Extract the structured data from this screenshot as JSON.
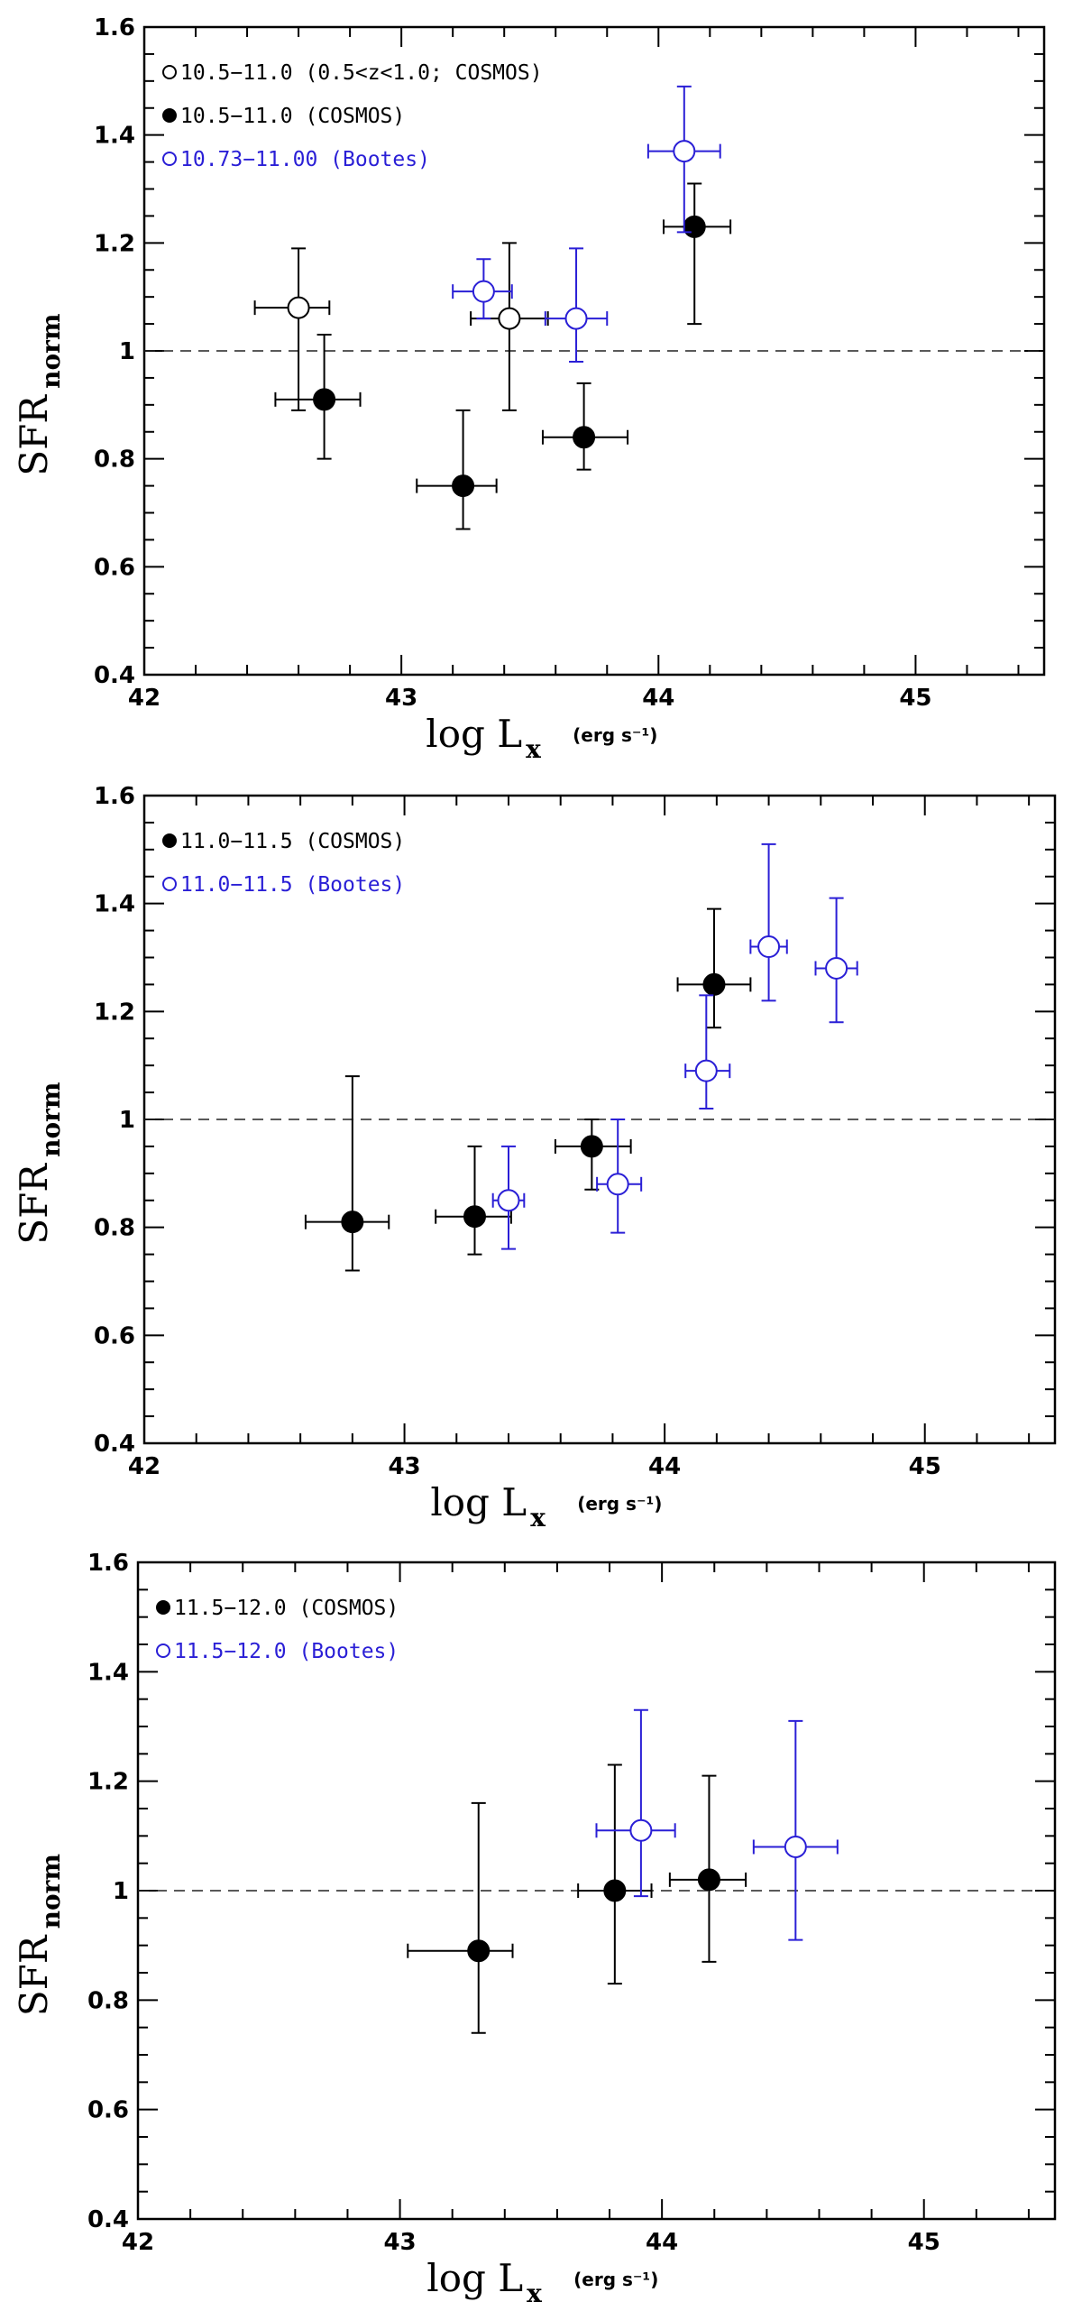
{
  "chart_data": [
    {
      "type": "scatter",
      "xlabel_main": "log L",
      "xlabel_sub": "x",
      "xlabel_units": "(erg s⁻¹)",
      "ylabel_main": "SFR",
      "ylabel_sub": "norm",
      "xlim": [
        42,
        45.5
      ],
      "ylim": [
        0.4,
        1.6
      ],
      "xticks": [
        42,
        43,
        44,
        45
      ],
      "yticks": [
        0.4,
        0.6,
        0.8,
        1,
        1.2,
        1.4,
        1.6
      ],
      "ytick_labels": [
        "0.4",
        "0.6",
        "0.8",
        "1",
        "1.2",
        "1.4",
        "1.6"
      ],
      "reference_line": 1,
      "series": [
        {
          "name": "10.5−11.0 (0.5<z<1.0; COSMOS)",
          "marker": "open",
          "color": "#000000",
          "points": [
            {
              "x": 42.6,
              "y": 1.08,
              "xerr": [
                0.17,
                0.12
              ],
              "yerr": [
                0.19,
                0.11
              ]
            },
            {
              "x": 43.42,
              "y": 1.06,
              "xerr": [
                0.15,
                0.15
              ],
              "yerr": [
                0.17,
                0.14
              ]
            }
          ]
        },
        {
          "name": "10.5−11.0 (COSMOS)",
          "marker": "filled",
          "color": "#000000",
          "points": [
            {
              "x": 42.7,
              "y": 0.91,
              "xerr": [
                0.19,
                0.14
              ],
              "yerr": [
                0.11,
                0.12
              ]
            },
            {
              "x": 43.24,
              "y": 0.75,
              "xerr": [
                0.18,
                0.13
              ],
              "yerr": [
                0.08,
                0.14
              ]
            },
            {
              "x": 43.71,
              "y": 0.84,
              "xerr": [
                0.16,
                0.17
              ],
              "yerr": [
                0.06,
                0.1
              ]
            },
            {
              "x": 44.14,
              "y": 1.23,
              "xerr": [
                0.12,
                0.14
              ],
              "yerr": [
                0.18,
                0.08
              ]
            }
          ]
        },
        {
          "name": "10.73−11.00 (Bootes)",
          "marker": "open",
          "color": "#2a1fd6",
          "points": [
            {
              "x": 43.32,
              "y": 1.11,
              "xerr": [
                0.12,
                0.11
              ],
              "yerr": [
                0.05,
                0.06
              ]
            },
            {
              "x": 43.68,
              "y": 1.06,
              "xerr": [
                0.12,
                0.12
              ],
              "yerr": [
                0.08,
                0.13
              ]
            },
            {
              "x": 44.1,
              "y": 1.37,
              "xerr": [
                0.14,
                0.14
              ],
              "yerr": [
                0.15,
                0.12
              ]
            }
          ]
        }
      ]
    },
    {
      "type": "scatter",
      "xlabel_main": "log L",
      "xlabel_sub": "x",
      "xlabel_units": "(erg s⁻¹)",
      "ylabel_main": "SFR",
      "ylabel_sub": "norm",
      "xlim": [
        42,
        45.5
      ],
      "ylim": [
        0.4,
        1.6
      ],
      "xticks": [
        42,
        43,
        44,
        45
      ],
      "yticks": [
        0.4,
        0.6,
        0.8,
        1,
        1.2,
        1.4,
        1.6
      ],
      "ytick_labels": [
        "0.4",
        "0.6",
        "0.8",
        "1",
        "1.2",
        "1.4",
        "1.6"
      ],
      "reference_line": 1,
      "series": [
        {
          "name": "11.0−11.5 (COSMOS)",
          "marker": "filled",
          "color": "#000000",
          "points": [
            {
              "x": 42.8,
              "y": 0.81,
              "xerr": [
                0.18,
                0.14
              ],
              "yerr": [
                0.09,
                0.27
              ]
            },
            {
              "x": 43.27,
              "y": 0.82,
              "xerr": [
                0.15,
                0.14
              ],
              "yerr": [
                0.07,
                0.13
              ]
            },
            {
              "x": 43.72,
              "y": 0.95,
              "xerr": [
                0.14,
                0.15
              ],
              "yerr": [
                0.08,
                0.05
              ]
            },
            {
              "x": 44.19,
              "y": 1.25,
              "xerr": [
                0.14,
                0.14
              ],
              "yerr": [
                0.08,
                0.14
              ]
            }
          ]
        },
        {
          "name": "11.0−11.5 (Bootes)",
          "marker": "open",
          "color": "#2a1fd6",
          "points": [
            {
              "x": 43.4,
              "y": 0.85,
              "xerr": [
                0.06,
                0.06
              ],
              "yerr": [
                0.09,
                0.1
              ]
            },
            {
              "x": 43.82,
              "y": 0.88,
              "xerr": [
                0.08,
                0.09
              ],
              "yerr": [
                0.09,
                0.12
              ]
            },
            {
              "x": 44.16,
              "y": 1.09,
              "xerr": [
                0.08,
                0.09
              ],
              "yerr": [
                0.07,
                0.14
              ]
            },
            {
              "x": 44.4,
              "y": 1.32,
              "xerr": [
                0.07,
                0.07
              ],
              "yerr": [
                0.1,
                0.19
              ]
            },
            {
              "x": 44.66,
              "y": 1.28,
              "xerr": [
                0.08,
                0.08
              ],
              "yerr": [
                0.1,
                0.13
              ]
            }
          ]
        }
      ]
    },
    {
      "type": "scatter",
      "xlabel_main": "log L",
      "xlabel_sub": "x",
      "xlabel_units": "(erg s⁻¹)",
      "ylabel_main": "SFR",
      "ylabel_sub": "norm",
      "xlim": [
        42,
        45.5
      ],
      "ylim": [
        0.4,
        1.6
      ],
      "xticks": [
        42,
        43,
        44,
        45
      ],
      "yticks": [
        0.4,
        0.6,
        0.8,
        1,
        1.2,
        1.4,
        1.6
      ],
      "ytick_labels": [
        "0.4",
        "0.6",
        "0.8",
        "1",
        "1.2",
        "1.4",
        "1.6"
      ],
      "reference_line": 1,
      "series": [
        {
          "name": "11.5−12.0 (COSMOS)",
          "marker": "filled",
          "color": "#000000",
          "points": [
            {
              "x": 43.3,
              "y": 0.89,
              "xerr": [
                0.27,
                0.13
              ],
              "yerr": [
                0.15,
                0.27
              ]
            },
            {
              "x": 43.82,
              "y": 1.0,
              "xerr": [
                0.14,
                0.14
              ],
              "yerr": [
                0.17,
                0.23
              ]
            },
            {
              "x": 44.18,
              "y": 1.02,
              "xerr": [
                0.15,
                0.14
              ],
              "yerr": [
                0.15,
                0.19
              ]
            }
          ]
        },
        {
          "name": "11.5−12.0 (Bootes)",
          "marker": "open",
          "color": "#2a1fd6",
          "points": [
            {
              "x": 43.92,
              "y": 1.11,
              "xerr": [
                0.17,
                0.13
              ],
              "yerr": [
                0.12,
                0.22
              ]
            },
            {
              "x": 44.51,
              "y": 1.08,
              "xerr": [
                0.16,
                0.16
              ],
              "yerr": [
                0.17,
                0.23
              ]
            }
          ]
        }
      ]
    }
  ]
}
